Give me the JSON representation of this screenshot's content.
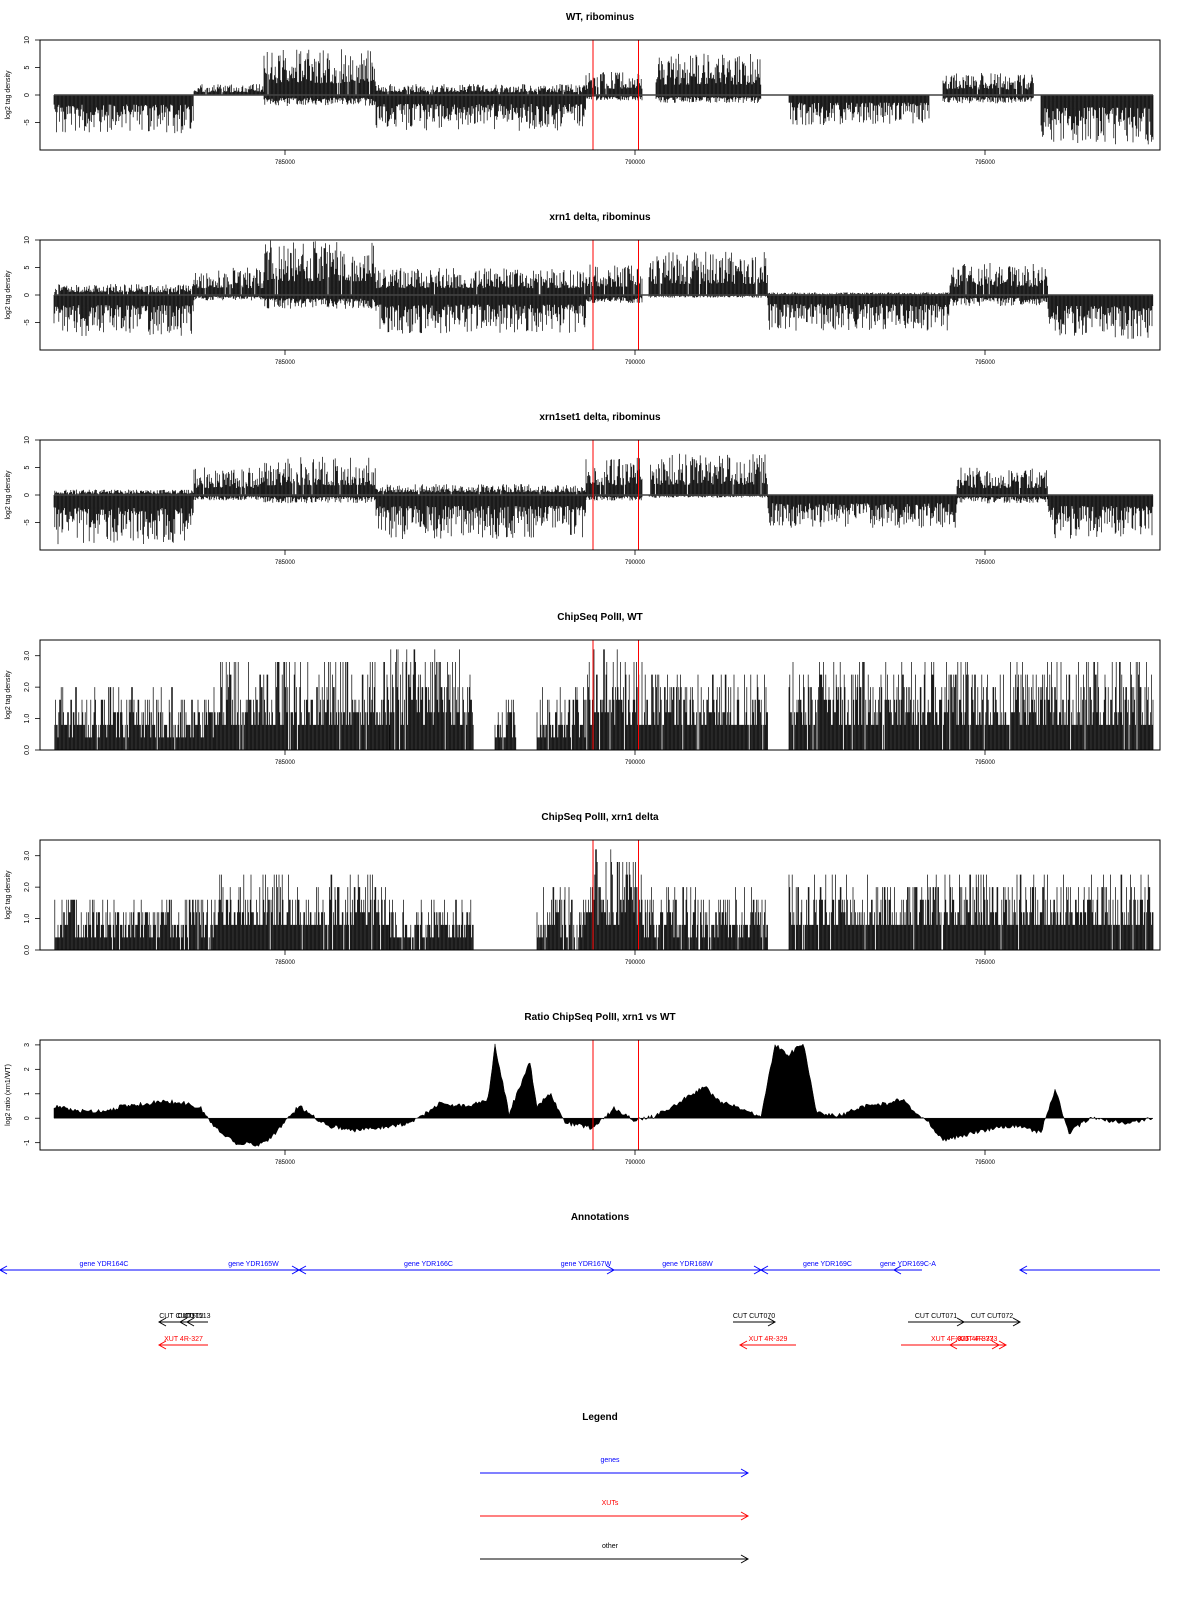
{
  "colors": {
    "genes": "#0000ff",
    "xuts": "#ff0000",
    "other": "#000000",
    "marker": "#ff0000"
  },
  "chart_data": [
    {
      "type": "bar",
      "title": "WT, ribominus",
      "ylabel": "log2 tag density",
      "ylim": [
        -10,
        10
      ],
      "yticks": [
        -5,
        0,
        5,
        10
      ],
      "ytick_labels": [
        "-5",
        "0",
        "5",
        "10"
      ],
      "xlim": [
        781500,
        797500
      ],
      "xticks": [
        785000,
        790000,
        795000
      ],
      "xtick_labels": [
        "785000",
        "790000",
        "795000"
      ],
      "markers": [
        789400,
        790050
      ],
      "baseline": 0,
      "segments": [
        {
          "x0": 781700,
          "x1": 783700,
          "min": -7,
          "max": 0
        },
        {
          "x0": 783700,
          "x1": 784700,
          "min": 0,
          "max": 2
        },
        {
          "x0": 784700,
          "x1": 786300,
          "min": -2,
          "max": 8.5
        },
        {
          "x0": 786300,
          "x1": 789300,
          "min": -6.5,
          "max": 2
        },
        {
          "x0": 789300,
          "x1": 790100,
          "min": -1,
          "max": 4.5
        },
        {
          "x0": 790300,
          "x1": 791800,
          "min": -1.5,
          "max": 7.5
        },
        {
          "x0": 792200,
          "x1": 794200,
          "min": -5.5,
          "max": 0
        },
        {
          "x0": 794400,
          "x1": 795700,
          "min": -1.5,
          "max": 4
        },
        {
          "x0": 795800,
          "x1": 797400,
          "min": -9,
          "max": 0
        }
      ]
    },
    {
      "type": "bar",
      "title": "xrn1 delta, ribominus",
      "ylabel": "log2 tag density",
      "ylim": [
        -10,
        10
      ],
      "yticks": [
        -5,
        0,
        5,
        10
      ],
      "ytick_labels": [
        "-5",
        "0",
        "5",
        "10"
      ],
      "xlim": [
        781500,
        797500
      ],
      "xticks": [
        785000,
        790000,
        795000
      ],
      "xtick_labels": [
        "785000",
        "790000",
        "795000"
      ],
      "markers": [
        789400,
        790050
      ],
      "baseline": 0,
      "segments": [
        {
          "x0": 781700,
          "x1": 783700,
          "min": -7.5,
          "max": 2
        },
        {
          "x0": 783700,
          "x1": 784700,
          "min": -1,
          "max": 5
        },
        {
          "x0": 784700,
          "x1": 786300,
          "min": -2.5,
          "max": 10
        },
        {
          "x0": 786300,
          "x1": 789300,
          "min": -7,
          "max": 5
        },
        {
          "x0": 789300,
          "x1": 790100,
          "min": -1.5,
          "max": 6
        },
        {
          "x0": 790200,
          "x1": 791900,
          "min": -0.5,
          "max": 8
        },
        {
          "x0": 791900,
          "x1": 794500,
          "min": -6.5,
          "max": 0.5
        },
        {
          "x0": 794500,
          "x1": 795900,
          "min": -2,
          "max": 6
        },
        {
          "x0": 795900,
          "x1": 797400,
          "min": -8,
          "max": 0
        }
      ]
    },
    {
      "type": "bar",
      "title": "xrn1set1 delta, ribominus",
      "ylabel": "log2 tag density",
      "ylim": [
        -10,
        10
      ],
      "yticks": [
        -5,
        0,
        5,
        10
      ],
      "ytick_labels": [
        "-5",
        "0",
        "5",
        "10"
      ],
      "xlim": [
        781500,
        797500
      ],
      "xticks": [
        785000,
        790000,
        795000
      ],
      "xtick_labels": [
        "785000",
        "790000",
        "795000"
      ],
      "markers": [
        789400,
        790050
      ],
      "baseline": 0,
      "segments": [
        {
          "x0": 781700,
          "x1": 783700,
          "min": -9,
          "max": 1
        },
        {
          "x0": 783700,
          "x1": 784700,
          "min": -1,
          "max": 5
        },
        {
          "x0": 784700,
          "x1": 786300,
          "min": -1.5,
          "max": 7
        },
        {
          "x0": 786300,
          "x1": 789300,
          "min": -8,
          "max": 2
        },
        {
          "x0": 789300,
          "x1": 790100,
          "min": -1,
          "max": 7
        },
        {
          "x0": 790200,
          "x1": 791900,
          "min": -0.5,
          "max": 7.5
        },
        {
          "x0": 791900,
          "x1": 794600,
          "min": -6,
          "max": 0
        },
        {
          "x0": 794600,
          "x1": 795900,
          "min": -1.5,
          "max": 5
        },
        {
          "x0": 795900,
          "x1": 797400,
          "min": -8,
          "max": 0
        }
      ]
    },
    {
      "type": "bar",
      "title": "ChipSeq PolII, WT",
      "ylabel": "log2 tag density",
      "ylim": [
        0,
        3.5
      ],
      "yticks": [
        0,
        1,
        2,
        3
      ],
      "ytick_labels": [
        "0.0",
        "1.0",
        "2.0",
        "3.0"
      ],
      "xlim": [
        781500,
        797500
      ],
      "xticks": [
        785000,
        790000,
        795000
      ],
      "xtick_labels": [
        "785000",
        "790000",
        "795000"
      ],
      "markers": [
        789400,
        790050
      ],
      "baseline": 0,
      "segments": [
        {
          "x0": 781700,
          "x1": 784000,
          "min": 0,
          "max": 2
        },
        {
          "x0": 784000,
          "x1": 786500,
          "min": 0,
          "max": 3
        },
        {
          "x0": 786500,
          "x1": 787700,
          "min": 0,
          "max": 3.2
        },
        {
          "x0": 788000,
          "x1": 788300,
          "min": 0,
          "max": 1.6
        },
        {
          "x0": 788600,
          "x1": 789300,
          "min": 0,
          "max": 2
        },
        {
          "x0": 789300,
          "x1": 790100,
          "min": 0,
          "max": 3.5
        },
        {
          "x0": 790100,
          "x1": 791900,
          "min": 0,
          "max": 2.6
        },
        {
          "x0": 792200,
          "x1": 797400,
          "min": 0,
          "max": 3
        }
      ]
    },
    {
      "type": "bar",
      "title": "ChipSeq PolII, xrn1 delta",
      "ylabel": "log2 tag density",
      "ylim": [
        0,
        3.5
      ],
      "yticks": [
        0,
        1,
        2,
        3
      ],
      "ytick_labels": [
        "0.0",
        "1.0",
        "2.0",
        "3.0"
      ],
      "xlim": [
        781500,
        797500
      ],
      "xticks": [
        785000,
        790000,
        795000
      ],
      "xtick_labels": [
        "785000",
        "790000",
        "795000"
      ],
      "markers": [
        789400,
        790050
      ],
      "baseline": 0,
      "segments": [
        {
          "x0": 781700,
          "x1": 784000,
          "min": 0,
          "max": 1.8
        },
        {
          "x0": 784000,
          "x1": 786500,
          "min": 0,
          "max": 2.4
        },
        {
          "x0": 786500,
          "x1": 787700,
          "min": 0,
          "max": 1.6
        },
        {
          "x0": 788600,
          "x1": 789300,
          "min": 0,
          "max": 2
        },
        {
          "x0": 789300,
          "x1": 790100,
          "min": 0,
          "max": 3.3
        },
        {
          "x0": 790100,
          "x1": 791900,
          "min": 0,
          "max": 2
        },
        {
          "x0": 792200,
          "x1": 797400,
          "min": 0,
          "max": 2.5
        }
      ]
    },
    {
      "type": "area",
      "title": "Ratio ChipSeq PolII, xrn1 vs WT",
      "ylabel": "log2 ratio (xrn1/WT)",
      "ylim": [
        -1.3,
        3.2
      ],
      "yticks": [
        -1,
        0,
        1,
        2,
        3
      ],
      "ytick_labels": [
        "-1",
        "0",
        "1",
        "2",
        "3"
      ],
      "xlim": [
        781500,
        797500
      ],
      "xticks": [
        785000,
        790000,
        795000
      ],
      "xtick_labels": [
        "785000",
        "790000",
        "795000"
      ],
      "markers": [
        789400,
        790050
      ],
      "baseline": 0,
      "x": [
        781700,
        782000,
        782400,
        782700,
        783000,
        783300,
        783600,
        783800,
        784000,
        784300,
        784600,
        784800,
        785200,
        785600,
        786000,
        786300,
        786800,
        787200,
        787600,
        787900,
        788000,
        788200,
        788500,
        788600,
        788800,
        789000,
        789200,
        789400,
        789700,
        790000,
        790300,
        790600,
        791000,
        791200,
        791500,
        791800,
        792000,
        792200,
        792400,
        792600,
        792900,
        793300,
        793600,
        793800,
        794200,
        794400,
        794700,
        795000,
        795400,
        795800,
        796000,
        796200,
        796500,
        797000,
        797400
      ],
      "y": [
        0.5,
        0.3,
        0.3,
        0.5,
        0.6,
        0.7,
        0.6,
        0.4,
        -0.4,
        -1.0,
        -1.1,
        -0.8,
        0.5,
        -0.3,
        -0.5,
        -0.4,
        -0.2,
        0.6,
        0.5,
        0.8,
        3.0,
        0.2,
        2.3,
        0.5,
        1.0,
        -0.2,
        -0.3,
        -0.4,
        0.4,
        -0.1,
        0.1,
        0.6,
        1.3,
        0.7,
        0.4,
        0.1,
        3.0,
        2.6,
        3.1,
        0.2,
        0.1,
        0.5,
        0.6,
        0.8,
        -0.2,
        -0.9,
        -0.7,
        -0.5,
        -0.3,
        -0.6,
        1.2,
        -0.6,
        0.0,
        -0.2,
        0.0
      ]
    },
    {
      "type": "annotation-track",
      "title": "Annotations",
      "xlim": [
        781500,
        797500
      ],
      "features": [
        {
          "label": "gene YDR164C",
          "class": "gene",
          "strand": "-",
          "start": 780800,
          "end": 783900,
          "row": 0
        },
        {
          "label": "gene YDR165W",
          "class": "gene",
          "strand": "+",
          "start": 783900,
          "end": 785200,
          "row": 0
        },
        {
          "label": "gene YDR166C",
          "class": "gene",
          "strand": "-",
          "start": 785200,
          "end": 788900,
          "row": 0
        },
        {
          "label": "gene YDR167W",
          "class": "gene",
          "strand": "+",
          "start": 788900,
          "end": 789700,
          "row": 0
        },
        {
          "label": "gene YDR168W",
          "class": "gene",
          "strand": "+",
          "start": 789700,
          "end": 791800,
          "row": 0
        },
        {
          "label": "gene YDR169C",
          "class": "gene",
          "strand": "-",
          "start": 791800,
          "end": 793700,
          "row": 0
        },
        {
          "label": "gene YDR169C-A",
          "class": "gene",
          "strand": "-",
          "start": 793700,
          "end": 794100,
          "row": 0
        },
        {
          "label": "",
          "class": "gene",
          "strand": "-",
          "start": 795500,
          "end": 797500,
          "row": 0
        },
        {
          "label": "CUT CUT0",
          "class": "other",
          "strand": "-",
          "start": 783200,
          "end": 783700,
          "row": 1
        },
        {
          "label": "CUT512",
          "class": "other",
          "strand": "-",
          "start": 783500,
          "end": 783800,
          "row": 1
        },
        {
          "label": "CUT513",
          "class": "other",
          "strand": "-",
          "start": 783600,
          "end": 783900,
          "row": 1
        },
        {
          "label": "CUT CUT070",
          "class": "other",
          "strand": "+",
          "start": 791400,
          "end": 792000,
          "row": 1
        },
        {
          "label": "CUT CUT071",
          "class": "other",
          "strand": "+",
          "start": 793900,
          "end": 794700,
          "row": 1
        },
        {
          "label": "CUT CUT072",
          "class": "other",
          "strand": "+",
          "start": 794700,
          "end": 795500,
          "row": 1
        },
        {
          "label": "XUT 4R-327",
          "class": "xut",
          "strand": "-",
          "start": 783200,
          "end": 783900,
          "row": 2
        },
        {
          "label": "XUT 4R-329",
          "class": "xut",
          "strand": "-",
          "start": 791500,
          "end": 792300,
          "row": 2
        },
        {
          "label": "XUT 4F-376",
          "class": "xut",
          "strand": "+",
          "start": 793800,
          "end": 795200,
          "row": 2
        },
        {
          "label": "XUT 4F-377",
          "class": "xut",
          "strand": "+",
          "start": 794400,
          "end": 795300,
          "row": 2
        },
        {
          "label": "XUT 4R-333",
          "class": "xut",
          "strand": "-",
          "start": 794500,
          "end": 795300,
          "row": 2
        }
      ]
    }
  ],
  "legend": {
    "title": "Legend",
    "items": [
      {
        "label": "genes",
        "class": "gene"
      },
      {
        "label": "XUTs",
        "class": "xut"
      },
      {
        "label": "other",
        "class": "other"
      }
    ]
  }
}
